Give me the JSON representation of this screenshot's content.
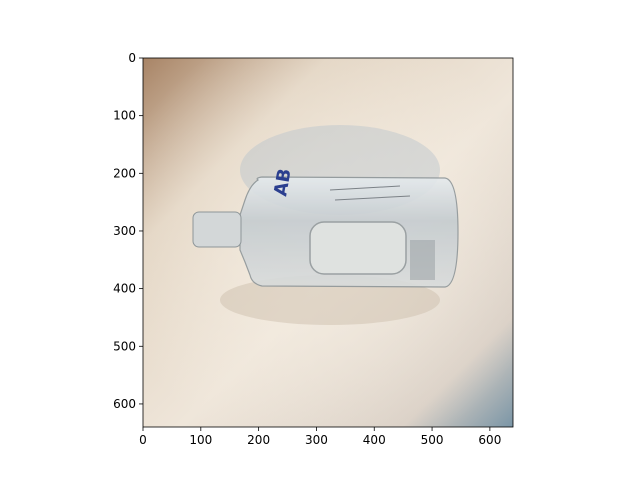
{
  "chart_data": {
    "type": "image",
    "xlim": [
      0,
      640
    ],
    "ylim": [
      640,
      0
    ],
    "xticks": [
      0,
      100,
      200,
      300,
      400,
      500,
      600
    ],
    "yticks": [
      0,
      100,
      200,
      300,
      400,
      500,
      600
    ]
  }
}
